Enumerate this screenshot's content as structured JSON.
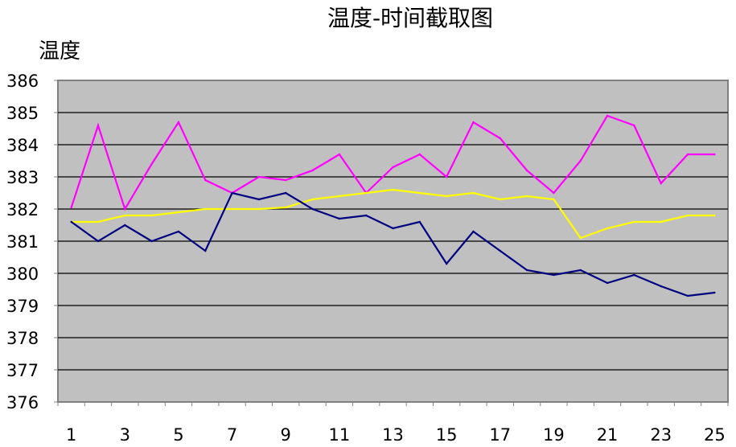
{
  "chart_data": {
    "type": "line",
    "title": "温度-时间截取图",
    "ylabel": "温度",
    "xlabel": "",
    "categories": [
      1,
      2,
      3,
      4,
      5,
      6,
      7,
      8,
      9,
      10,
      11,
      12,
      13,
      14,
      15,
      16,
      17,
      18,
      19,
      20,
      21,
      22,
      23,
      24,
      25
    ],
    "x_tick_labels": [
      "1",
      "3",
      "5",
      "7",
      "9",
      "11",
      "13",
      "15",
      "17",
      "19",
      "21",
      "23",
      "25"
    ],
    "ylim": [
      376,
      386
    ],
    "y_ticks": [
      "376",
      "377",
      "378",
      "379",
      "380",
      "381",
      "382",
      "383",
      "384",
      "385",
      "386"
    ],
    "grid": true,
    "plot_background": "#c0c0c0",
    "series": [
      {
        "color": "#ff00ff",
        "values": [
          382.05,
          384.6,
          382.0,
          383.4,
          384.7,
          382.9,
          382.5,
          383.0,
          382.9,
          383.2,
          383.7,
          382.5,
          383.3,
          383.7,
          383.0,
          384.7,
          384.2,
          383.2,
          382.5,
          383.5,
          384.9,
          384.6,
          382.8,
          383.7,
          383.7
        ]
      },
      {
        "color": "#ffff00",
        "values": [
          381.6,
          381.6,
          381.8,
          381.8,
          381.9,
          382.0,
          382.0,
          382.0,
          382.05,
          382.3,
          382.4,
          382.5,
          382.6,
          382.5,
          382.4,
          382.5,
          382.3,
          382.4,
          382.3,
          381.1,
          381.4,
          381.6,
          381.6,
          381.8,
          381.8
        ]
      },
      {
        "color": "#000080",
        "values": [
          381.6,
          381.0,
          381.5,
          381.0,
          381.3,
          380.7,
          382.5,
          382.3,
          382.5,
          382.0,
          381.7,
          381.8,
          381.4,
          381.6,
          380.3,
          381.3,
          380.7,
          380.1,
          379.95,
          380.1,
          379.7,
          379.95,
          379.6,
          379.3,
          379.4
        ]
      }
    ]
  }
}
